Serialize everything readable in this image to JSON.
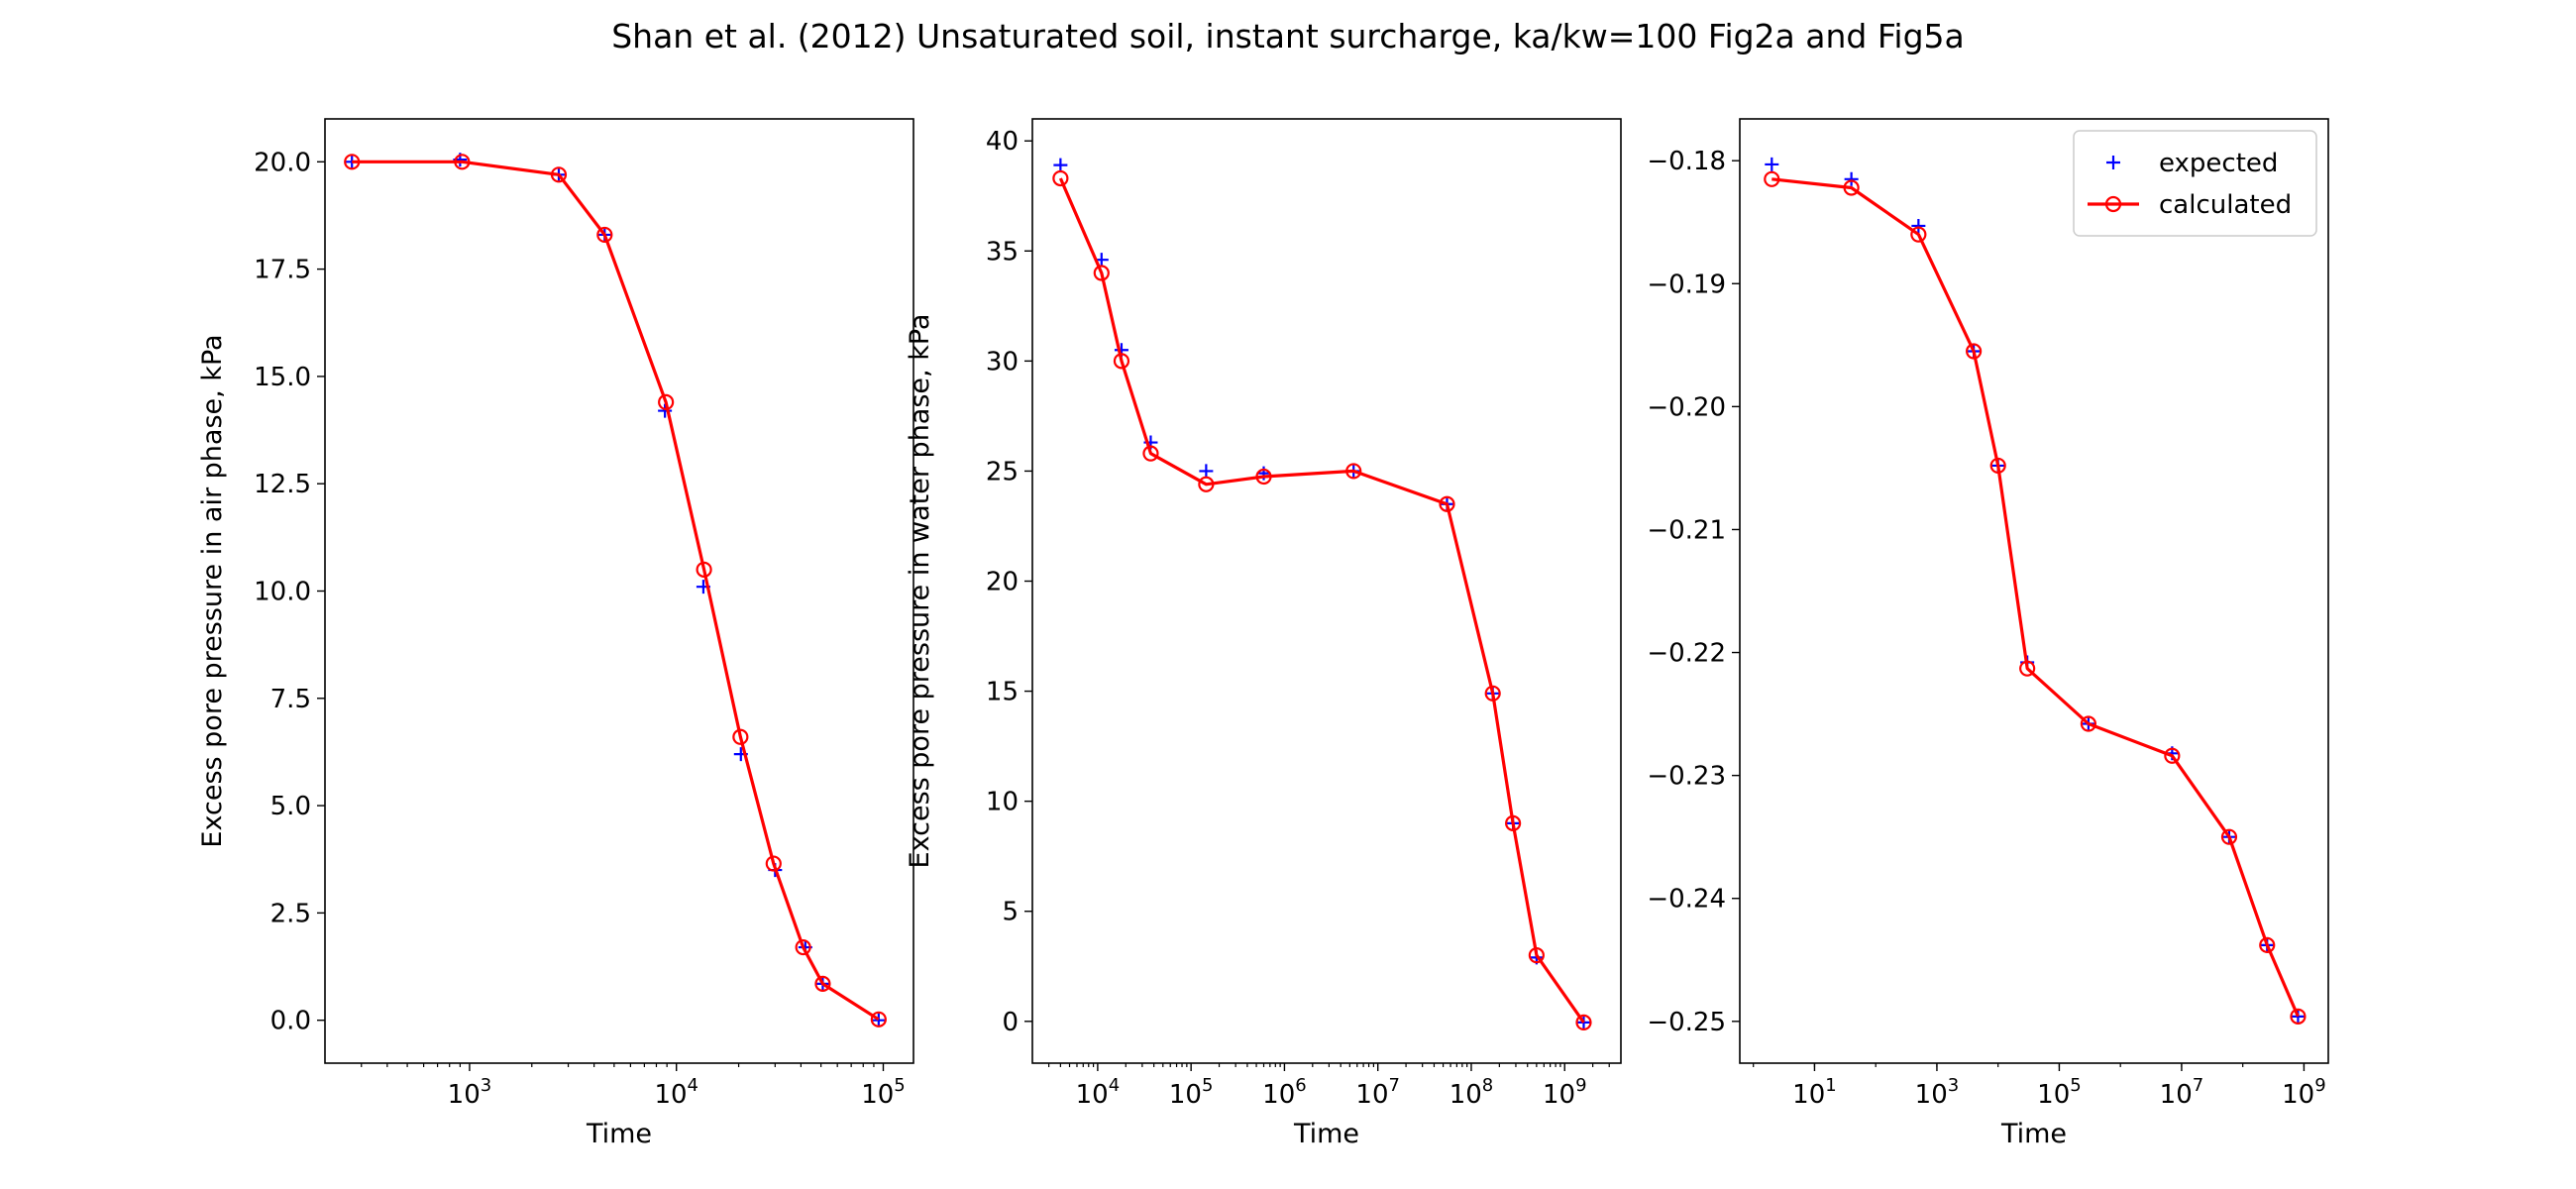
{
  "figure": {
    "title": "Shan et al. (2012) Unsaturated soil, instant surcharge, ka/kw=100 Fig2a and Fig5a"
  },
  "colors": {
    "expected": "#0000ff",
    "calculated": "#ff0000",
    "axes": "#000000",
    "legend_border": "#cccccc"
  },
  "chart_data": [
    {
      "type": "line",
      "title": "",
      "xlabel": "Time",
      "ylabel": "Excess pore pressure in air phase, kPa",
      "xscale": "log",
      "xlim": [
        200,
        140000
      ],
      "ylim": [
        -1.0,
        21.0
      ],
      "xticks": [
        {
          "value": 1000,
          "base": "10",
          "exp": "3"
        },
        {
          "value": 10000,
          "base": "10",
          "exp": "4"
        },
        {
          "value": 100000,
          "base": "10",
          "exp": "5"
        }
      ],
      "yticks": [
        {
          "value": 0.0,
          "label": "0.0"
        },
        {
          "value": 2.5,
          "label": "2.5"
        },
        {
          "value": 5.0,
          "label": "5.0"
        },
        {
          "value": 7.5,
          "label": "7.5"
        },
        {
          "value": 10.0,
          "label": "10.0"
        },
        {
          "value": 12.5,
          "label": "12.5"
        },
        {
          "value": 15.0,
          "label": "15.0"
        },
        {
          "value": 17.5,
          "label": "17.5"
        },
        {
          "value": 20.0,
          "label": "20.0"
        }
      ],
      "grid": false,
      "legend": null,
      "series": [
        {
          "name": "expected",
          "marker": "+",
          "x": [
            270,
            900,
            2700,
            4500,
            8800,
            13500,
            20500,
            30000,
            42000,
            51000,
            95000
          ],
          "y": [
            20.0,
            20.05,
            19.7,
            18.3,
            14.2,
            10.1,
            6.2,
            3.5,
            1.7,
            0.85,
            0.0
          ]
        },
        {
          "name": "calculated",
          "marker": "o",
          "x": [
            270,
            920,
            2700,
            4500,
            8900,
            13600,
            20400,
            29500,
            41000,
            51000,
            95000
          ],
          "y": [
            20.0,
            20.0,
            19.7,
            18.3,
            14.4,
            10.5,
            6.6,
            3.65,
            1.7,
            0.85,
            0.02
          ]
        }
      ]
    },
    {
      "type": "line",
      "title": "",
      "xlabel": "Time",
      "ylabel": "Excess pore pressure in water phase, kPa",
      "xscale": "log",
      "xlim": [
        2000,
        4000000000
      ],
      "ylim": [
        -1.9,
        41.0
      ],
      "xticks": [
        {
          "value": 10000,
          "base": "10",
          "exp": "4"
        },
        {
          "value": 100000,
          "base": "10",
          "exp": "5"
        },
        {
          "value": 1000000,
          "base": "10",
          "exp": "6"
        },
        {
          "value": 10000000,
          "base": "10",
          "exp": "7"
        },
        {
          "value": 100000000,
          "base": "10",
          "exp": "8"
        },
        {
          "value": 1000000000,
          "base": "10",
          "exp": "9"
        }
      ],
      "yticks": [
        {
          "value": 0,
          "label": "0"
        },
        {
          "value": 5,
          "label": "5"
        },
        {
          "value": 10,
          "label": "10"
        },
        {
          "value": 15,
          "label": "15"
        },
        {
          "value": 20,
          "label": "20"
        },
        {
          "value": 25,
          "label": "25"
        },
        {
          "value": 30,
          "label": "30"
        },
        {
          "value": 35,
          "label": "35"
        },
        {
          "value": 40,
          "label": "40"
        }
      ],
      "grid": false,
      "legend": null,
      "series": [
        {
          "name": "expected",
          "marker": "+",
          "x": [
            4000,
            11000,
            18000,
            37000,
            145000,
            600000,
            5500000,
            55000000,
            170000000,
            280000000,
            500000000,
            1600000000
          ],
          "y": [
            38.9,
            34.6,
            30.5,
            26.3,
            25.0,
            24.9,
            25.0,
            23.5,
            14.9,
            9.0,
            2.9,
            -0.05
          ]
        },
        {
          "name": "calculated",
          "marker": "o",
          "x": [
            4000,
            11000,
            18000,
            37000,
            145000,
            600000,
            5500000,
            55000000,
            170000000,
            280000000,
            500000000,
            1600000000
          ],
          "y": [
            38.3,
            34.0,
            30.0,
            25.8,
            24.4,
            24.75,
            25.0,
            23.5,
            14.9,
            9.0,
            3.0,
            -0.05
          ]
        }
      ]
    },
    {
      "type": "line",
      "title": "",
      "xlabel": "Time",
      "ylabel": "",
      "xscale": "log",
      "xlim": [
        0.6,
        2500000000
      ],
      "ylim": [
        -0.2534,
        -0.1766
      ],
      "xticks": [
        {
          "value": 10,
          "base": "10",
          "exp": "1"
        },
        {
          "value": 1000,
          "base": "10",
          "exp": "3"
        },
        {
          "value": 100000,
          "base": "10",
          "exp": "5"
        },
        {
          "value": 10000000,
          "base": "10",
          "exp": "7"
        },
        {
          "value": 1000000000,
          "base": "10",
          "exp": "9"
        }
      ],
      "yticks": [
        {
          "value": -0.18,
          "label": "−0.18"
        },
        {
          "value": -0.19,
          "label": "−0.19"
        },
        {
          "value": -0.2,
          "label": "−0.20"
        },
        {
          "value": -0.21,
          "label": "−0.21"
        },
        {
          "value": -0.22,
          "label": "−0.22"
        },
        {
          "value": -0.23,
          "label": "−0.23"
        },
        {
          "value": -0.24,
          "label": "−0.24"
        },
        {
          "value": -0.25,
          "label": "−0.25"
        }
      ],
      "grid": false,
      "legend": "top-right",
      "series": [
        {
          "name": "expected",
          "marker": "+",
          "x": [
            2,
            40,
            500,
            4000,
            10000,
            30000,
            300000,
            7000000,
            60000000,
            250000000,
            800000000
          ],
          "y": [
            -0.1803,
            -0.1815,
            -0.1853,
            -0.1955,
            -0.2048,
            -0.2208,
            -0.2258,
            -0.2282,
            -0.235,
            -0.2438,
            -0.2496
          ]
        },
        {
          "name": "calculated",
          "marker": "o",
          "x": [
            2,
            40,
            500,
            4000,
            10000,
            30000,
            300000,
            7000000,
            60000000,
            250000000,
            800000000
          ],
          "y": [
            -0.1815,
            -0.1822,
            -0.186,
            -0.1955,
            -0.2048,
            -0.2213,
            -0.2258,
            -0.2284,
            -0.235,
            -0.2438,
            -0.2496
          ]
        }
      ]
    }
  ]
}
